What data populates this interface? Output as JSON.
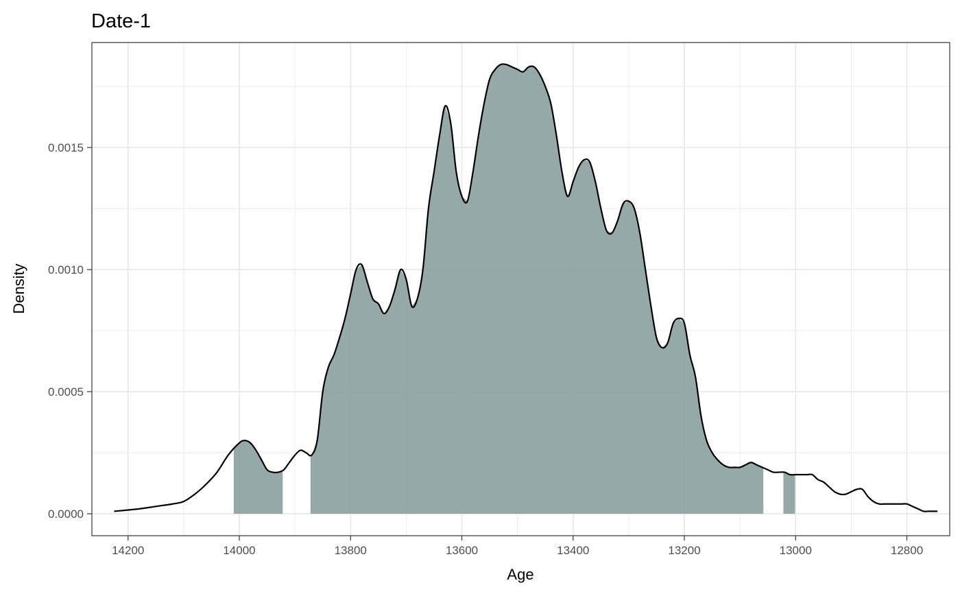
{
  "chart_data": {
    "type": "area",
    "title": "Date-1",
    "xlabel": "Age",
    "ylabel": "Density",
    "x_reversed": true,
    "xlim": [
      14265,
      12723
    ],
    "ylim": [
      -9e-05,
      0.00193
    ],
    "x_ticks": [
      14200,
      14000,
      13800,
      13600,
      13400,
      13200,
      13000,
      12800
    ],
    "x_tick_labels": [
      "14200",
      "14000",
      "13800",
      "13600",
      "13400",
      "13200",
      "13000",
      "12800"
    ],
    "y_ticks": [
      0.0,
      0.0005,
      0.001,
      0.0015
    ],
    "y_tick_labels": [
      "0.0000",
      "0.0005",
      "0.0010",
      "0.0015"
    ],
    "grid": true,
    "colors": {
      "fill": "#8c9e9e",
      "line": "#000000",
      "grid": "#ebebeb",
      "panel_border": "#333333"
    },
    "hpd_intervals": [
      [
        14010,
        13922
      ],
      [
        13872,
        13058
      ],
      [
        13022,
        13001
      ]
    ],
    "density": {
      "x": [
        14225,
        14180,
        14150,
        14120,
        14100,
        14080,
        14060,
        14040,
        14020,
        14000,
        13990,
        13980,
        13970,
        13960,
        13950,
        13940,
        13930,
        13920,
        13910,
        13900,
        13890,
        13880,
        13870,
        13860,
        13850,
        13840,
        13830,
        13820,
        13810,
        13800,
        13790,
        13780,
        13770,
        13760,
        13750,
        13740,
        13730,
        13720,
        13710,
        13700,
        13690,
        13680,
        13670,
        13660,
        13650,
        13640,
        13630,
        13620,
        13610,
        13600,
        13590,
        13580,
        13570,
        13560,
        13550,
        13540,
        13530,
        13520,
        13510,
        13500,
        13490,
        13480,
        13470,
        13460,
        13450,
        13440,
        13430,
        13420,
        13410,
        13400,
        13390,
        13380,
        13370,
        13360,
        13350,
        13340,
        13330,
        13320,
        13310,
        13300,
        13290,
        13280,
        13270,
        13260,
        13250,
        13240,
        13230,
        13220,
        13210,
        13200,
        13190,
        13180,
        13170,
        13160,
        13150,
        13140,
        13130,
        13120,
        13110,
        13100,
        13090,
        13080,
        13070,
        13060,
        13050,
        13040,
        13030,
        13020,
        13010,
        13000,
        12990,
        12980,
        12970,
        12960,
        12950,
        12940,
        12930,
        12920,
        12910,
        12900,
        12890,
        12880,
        12870,
        12860,
        12850,
        12840,
        12830,
        12820,
        12810,
        12800,
        12790,
        12780,
        12770,
        12760,
        12745
      ],
      "y": [
        1e-05,
        2e-05,
        3e-05,
        4e-05,
        5e-05,
        8e-05,
        0.00012,
        0.00017,
        0.00024,
        0.00029,
        0.0003,
        0.00029,
        0.00026,
        0.00022,
        0.00018,
        0.00017,
        0.00017,
        0.00018,
        0.00021,
        0.00024,
        0.00026,
        0.00025,
        0.00024,
        0.0003,
        0.0005,
        0.0006,
        0.00065,
        0.00072,
        0.0008,
        0.0009,
        0.001,
        0.00102,
        0.00095,
        0.00088,
        0.00086,
        0.00082,
        0.00085,
        0.00092,
        0.001,
        0.00096,
        0.00085,
        0.00088,
        0.001,
        0.00125,
        0.0014,
        0.00155,
        0.00167,
        0.0016,
        0.0014,
        0.0013,
        0.00128,
        0.0014,
        0.00155,
        0.00168,
        0.00178,
        0.00182,
        0.00184,
        0.00184,
        0.00183,
        0.00182,
        0.00181,
        0.00183,
        0.00183,
        0.0018,
        0.00175,
        0.00168,
        0.00155,
        0.0014,
        0.0013,
        0.00136,
        0.00142,
        0.00145,
        0.00144,
        0.00136,
        0.00125,
        0.00116,
        0.00115,
        0.0012,
        0.00127,
        0.00128,
        0.00125,
        0.00115,
        0.001,
        0.00085,
        0.00072,
        0.00068,
        0.0007,
        0.00078,
        0.0008,
        0.00078,
        0.00065,
        0.00056,
        0.0004,
        0.0003,
        0.00025,
        0.00022,
        0.0002,
        0.00019,
        0.00019,
        0.00019,
        0.0002,
        0.00021,
        0.0002,
        0.00019,
        0.00018,
        0.00017,
        0.00017,
        0.00017,
        0.00016,
        0.00016,
        0.00016,
        0.00016,
        0.00016,
        0.00014,
        0.00013,
        0.00011,
        9e-05,
        8e-05,
        8e-05,
        9e-05,
        0.0001,
        0.0001,
        7e-05,
        5e-05,
        4e-05,
        4e-05,
        4e-05,
        4e-05,
        4e-05,
        4e-05,
        3e-05,
        2e-05,
        1e-05,
        1e-05,
        1e-05
      ]
    }
  }
}
